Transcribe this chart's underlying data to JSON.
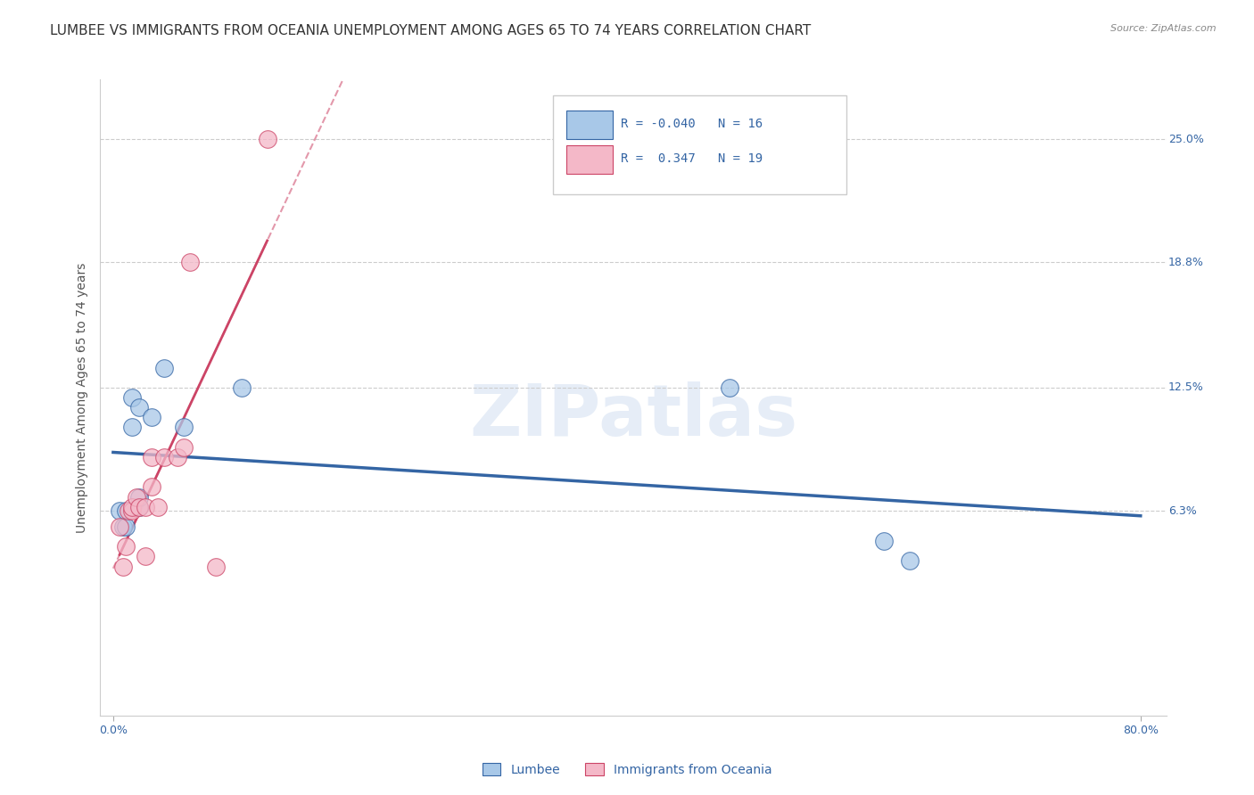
{
  "title": "LUMBEE VS IMMIGRANTS FROM OCEANIA UNEMPLOYMENT AMONG AGES 65 TO 74 YEARS CORRELATION CHART",
  "source": "Source: ZipAtlas.com",
  "ylabel": "Unemployment Among Ages 65 to 74 years",
  "xlabel": "",
  "xlim": [
    -0.01,
    0.82
  ],
  "ylim": [
    -0.04,
    0.28
  ],
  "ytick_labels": [
    "6.3%",
    "12.5%",
    "18.8%",
    "25.0%"
  ],
  "ytick_values": [
    0.063,
    0.125,
    0.188,
    0.25
  ],
  "watermark": "ZIPatlas",
  "lumbee_R": "-0.040",
  "lumbee_N": "16",
  "oceania_R": "0.347",
  "oceania_N": "19",
  "lumbee_color": "#a8c8e8",
  "oceania_color": "#f4b8c8",
  "lumbee_line_color": "#3465a4",
  "oceania_line_color": "#cc4466",
  "lumbee_x": [
    0.005,
    0.008,
    0.01,
    0.01,
    0.015,
    0.015,
    0.02,
    0.02,
    0.02,
    0.03,
    0.04,
    0.055,
    0.1,
    0.48,
    0.6,
    0.62
  ],
  "lumbee_y": [
    0.063,
    0.055,
    0.063,
    0.055,
    0.105,
    0.12,
    0.065,
    0.07,
    0.115,
    0.11,
    0.135,
    0.105,
    0.125,
    0.125,
    0.048,
    0.038
  ],
  "oceania_x": [
    0.005,
    0.008,
    0.01,
    0.012,
    0.015,
    0.015,
    0.018,
    0.02,
    0.025,
    0.025,
    0.03,
    0.03,
    0.035,
    0.04,
    0.05,
    0.055,
    0.06,
    0.08,
    0.12
  ],
  "oceania_y": [
    0.055,
    0.035,
    0.045,
    0.063,
    0.063,
    0.065,
    0.07,
    0.065,
    0.04,
    0.065,
    0.075,
    0.09,
    0.065,
    0.09,
    0.09,
    0.095,
    0.188,
    0.035,
    0.25
  ],
  "grid_color": "#cccccc",
  "bg_color": "#ffffff",
  "title_color": "#333333",
  "axis_label_color": "#555555",
  "right_tick_color": "#3465a4",
  "title_fontsize": 11,
  "label_fontsize": 10,
  "tick_fontsize": 9
}
